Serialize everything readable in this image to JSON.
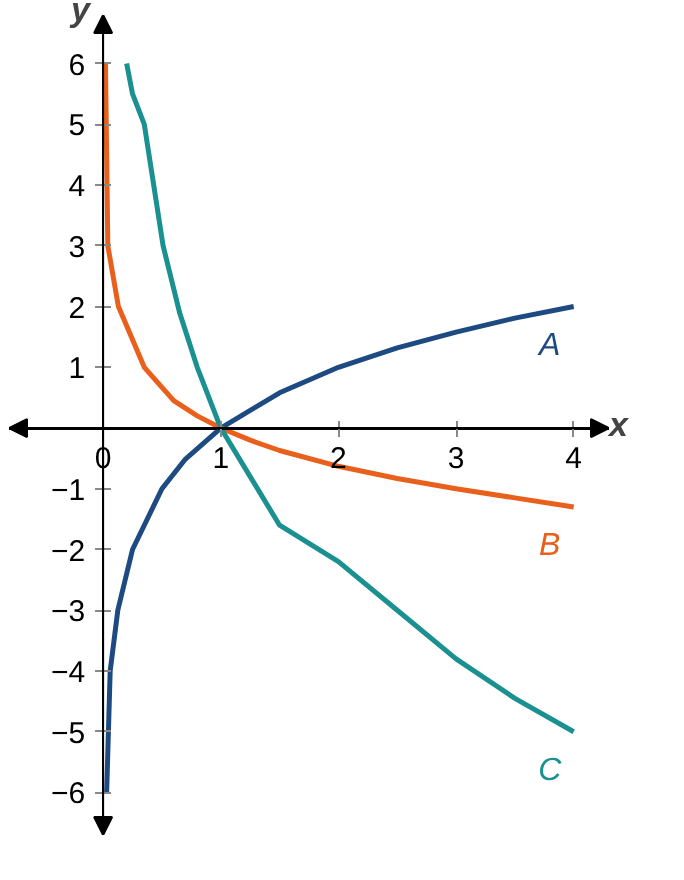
{
  "chart_data": {
    "type": "line",
    "xlabel": "x",
    "ylabel": "y",
    "xlim": [
      -0.8,
      4.3
    ],
    "ylim": [
      -6.7,
      6.8
    ],
    "xticks": [
      0,
      1,
      2,
      3,
      4
    ],
    "yticks": [
      {
        "value": -6,
        "label": "−6"
      },
      {
        "value": -5,
        "label": "−5"
      },
      {
        "value": -4,
        "label": "−4"
      },
      {
        "value": -3,
        "label": "−3"
      },
      {
        "value": -2,
        "label": "−2"
      },
      {
        "value": -1,
        "label": "−1"
      },
      1,
      2,
      3,
      4,
      5,
      6
    ],
    "grid": false,
    "legend": "right",
    "series": [
      {
        "name": "A",
        "color": "#1d4a80",
        "x": [
          0.03,
          0.06,
          0.125,
          0.25,
          0.5,
          0.7,
          1,
          1.5,
          2,
          2.5,
          3,
          3.5,
          4
        ],
        "values": [
          -6,
          -4,
          -3,
          -2,
          -1,
          -0.51,
          0,
          0.58,
          1,
          1.32,
          1.58,
          1.81,
          2
        ]
      },
      {
        "name": "B",
        "color": "#e8601c",
        "x": [
          0.02,
          0.03,
          0.04,
          0.13,
          0.35,
          0.6,
          0.8,
          1,
          1.25,
          1.5,
          2,
          2.5,
          3,
          3.5,
          4
        ],
        "values": [
          6,
          4.5,
          3,
          2,
          1,
          0.45,
          0.2,
          0,
          -0.2,
          -0.37,
          -0.63,
          -0.83,
          -1,
          -1.15,
          -1.3
        ]
      },
      {
        "name": "C",
        "color": "#1a9090",
        "x": [
          0.2,
          0.25,
          0.35,
          0.51,
          0.65,
          0.8,
          1,
          1.25,
          1.5,
          2,
          2.5,
          3,
          3.5,
          4
        ],
        "values": [
          6,
          5.5,
          5,
          3,
          1.9,
          1,
          0,
          -0.8,
          -1.6,
          -2.2,
          -3,
          -3.8,
          -4.45,
          -5
        ]
      }
    ]
  }
}
